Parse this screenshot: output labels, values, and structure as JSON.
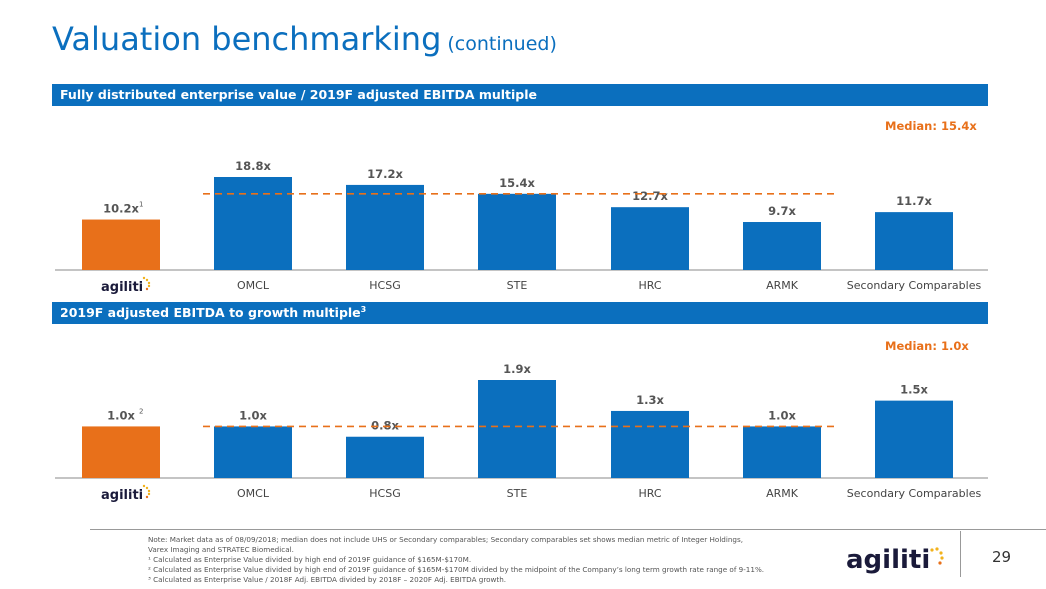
{
  "header": {
    "title": "Valuation benchmarking",
    "subtitle": "(continued)"
  },
  "page_number": "29",
  "logo": {
    "text": "agiliti",
    "colors": {
      "text": "#1a1a3a",
      "dot": "#E8701A",
      "accent": "#F2B21C"
    }
  },
  "colors": {
    "primary": "#0B6FBE",
    "highlight": "#E8701A",
    "median_line": "#E8701A"
  },
  "chart_data": [
    {
      "type": "bar",
      "title": "Fully distributed enterprise value / 2019F adjusted EBITDA multiple",
      "median_label": "Median: 15.4x",
      "median_value": 15.4,
      "categories": [
        "agiliti",
        "OMCL",
        "HCSG",
        "STE",
        "HRC",
        "ARMK",
        "Secondary Comparables"
      ],
      "values": [
        10.2,
        18.8,
        17.2,
        15.4,
        12.7,
        9.7,
        11.7
      ],
      "labels": [
        "10.2x",
        "18.8x",
        "17.2x",
        "15.4x",
        "12.7x",
        "9.7x",
        "11.7x"
      ],
      "footnote_marks": [
        "1",
        "",
        "",
        "",
        "",
        "",
        ""
      ],
      "ylim": [
        0,
        18.8
      ]
    },
    {
      "type": "bar",
      "title": "2019F adjusted EBITDA to growth multiple",
      "title_sup": "3",
      "median_label": "Median: 1.0x",
      "median_value": 1.0,
      "categories": [
        "agiliti",
        "OMCL",
        "HCSG",
        "STE",
        "HRC",
        "ARMK",
        "Secondary Comparables"
      ],
      "values": [
        1.0,
        1.0,
        0.8,
        1.9,
        1.3,
        1.0,
        1.5
      ],
      "labels": [
        "1.0x",
        "1.0x",
        "0.8x",
        "1.9x",
        "1.3x",
        "1.0x",
        "1.5x"
      ],
      "footnote_marks": [
        "2",
        "",
        "",
        "",
        "",
        "",
        ""
      ],
      "ylim": [
        0,
        1.9
      ]
    }
  ],
  "notes": [
    "Note: Market data as of 08/09/2018; median does not include UHS or Secondary comparables; Secondary comparables set shows median metric of Integer Holdings,",
    "Varex Imaging and STRATEC Biomedical.",
    "¹ Calculated as Enterprise Value divided by high end of 2019F guidance of $165M-$170M.",
    "² Calculated as Enterprise Value divided by high end of 2019F guidance of $165M-$170M divided by the midpoint of the Company’s long term growth rate range of 9-11%.",
    "³ Calculated as Enterprise Value / 2018F Adj. EBITDA divided by 2018F – 2020F Adj. EBITDA growth."
  ]
}
